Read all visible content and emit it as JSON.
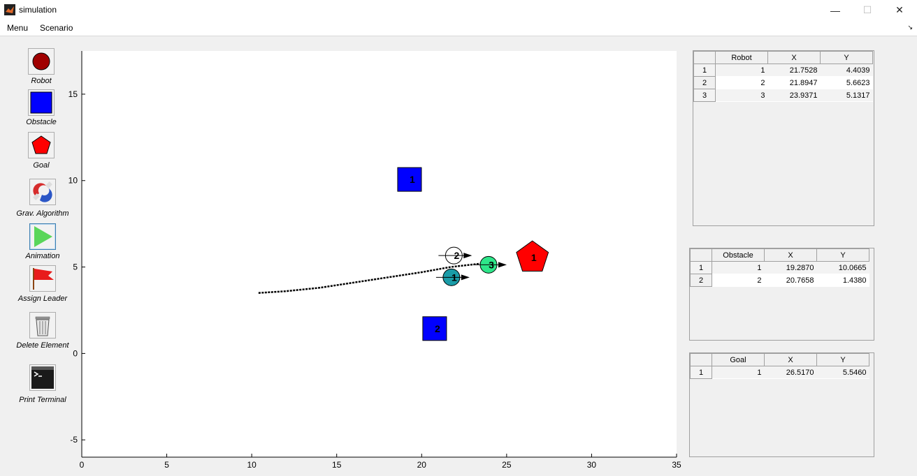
{
  "window": {
    "title": "simulation",
    "minimize": "—",
    "maximize": "☐",
    "close": "✕"
  },
  "menu": {
    "items": [
      "Menu",
      "Scenario"
    ],
    "arrow": "↘"
  },
  "toolbar": {
    "robot": "Robot",
    "obstacle": "Obstacle",
    "goal": "Goal",
    "grav": "Grav. Algorithm",
    "animation": "Animation",
    "leader": "Assign Leader",
    "delete": "Delete Element",
    "terminal": "Print Terminal"
  },
  "colors": {
    "robot_icon": "#a00000",
    "obstacle": "#0000ff",
    "goal": "#ff0000",
    "robot3": "#2ee68a",
    "robot1": "#1a9ca8"
  },
  "chart_data": {
    "type": "scatter",
    "xlim": [
      0,
      35
    ],
    "ylim": [
      -6,
      17.5
    ],
    "xticks": [
      0,
      5,
      10,
      15,
      20,
      25,
      30,
      35
    ],
    "yticks": [
      -5,
      0,
      5,
      10,
      15
    ],
    "obstacles": [
      {
        "label": "1",
        "x": 19.287,
        "y": 10.0665
      },
      {
        "label": "2",
        "x": 20.7658,
        "y": 1.438
      }
    ],
    "goals": [
      {
        "label": "1",
        "x": 26.517,
        "y": 5.546
      }
    ],
    "robots": [
      {
        "label": "1",
        "x": 21.7528,
        "y": 4.4039
      },
      {
        "label": "2",
        "x": 21.8947,
        "y": 5.6623
      },
      {
        "label": "3",
        "x": 23.9371,
        "y": 5.1317
      }
    ],
    "trail": [
      [
        10.4,
        3.5
      ],
      [
        12,
        3.6
      ],
      [
        14,
        3.8
      ],
      [
        16,
        4.1
      ],
      [
        18,
        4.4
      ],
      [
        20,
        4.7
      ],
      [
        21.7,
        5.0
      ],
      [
        23.5,
        5.2
      ]
    ]
  },
  "robot_table": {
    "headers": [
      "",
      "Robot",
      "X",
      "Y"
    ],
    "rows": [
      [
        "1",
        "1",
        "21.7528",
        "4.4039"
      ],
      [
        "2",
        "2",
        "21.8947",
        "5.6623"
      ],
      [
        "3",
        "3",
        "23.9371",
        "5.1317"
      ]
    ]
  },
  "obstacle_table": {
    "headers": [
      "",
      "Obstacle",
      "X",
      "Y"
    ],
    "rows": [
      [
        "1",
        "1",
        "19.2870",
        "10.0665"
      ],
      [
        "2",
        "2",
        "20.7658",
        "1.4380"
      ]
    ]
  },
  "goal_table": {
    "headers": [
      "",
      "Goal",
      "X",
      "Y"
    ],
    "rows": [
      [
        "1",
        "1",
        "26.5170",
        "5.5460"
      ]
    ]
  }
}
